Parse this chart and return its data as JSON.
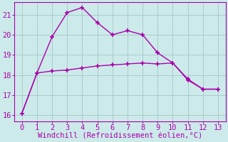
{
  "xlabel": "Windchill (Refroidissement éolien,°C)",
  "xlim": [
    -0.5,
    13.5
  ],
  "ylim": [
    15.7,
    21.6
  ],
  "yticks": [
    16,
    17,
    18,
    19,
    20,
    21
  ],
  "xticks": [
    0,
    1,
    2,
    3,
    4,
    5,
    6,
    7,
    8,
    9,
    10,
    11,
    12,
    13
  ],
  "background_color": "#cceaea",
  "grid_color": "#aacccc",
  "line_color": "#aa00aa",
  "line1_x": [
    0,
    1,
    2,
    3,
    4,
    5,
    6,
    7,
    8,
    9,
    10,
    11,
    12,
    13
  ],
  "line1_y": [
    16.1,
    18.1,
    19.9,
    21.1,
    21.35,
    20.6,
    20.0,
    20.2,
    20.0,
    19.1,
    18.6,
    17.8,
    17.3,
    17.3
  ],
  "line2_x": [
    0,
    1,
    2,
    3,
    4,
    5,
    6,
    7,
    8,
    9,
    10,
    11,
    12,
    13
  ],
  "line2_y": [
    16.1,
    18.1,
    18.2,
    18.25,
    18.35,
    18.45,
    18.5,
    18.55,
    18.6,
    18.55,
    18.6,
    17.75,
    17.3,
    17.3
  ],
  "markersize": 4,
  "linewidth": 1.0,
  "tick_fontsize": 7.5,
  "xlabel_fontsize": 7.5
}
